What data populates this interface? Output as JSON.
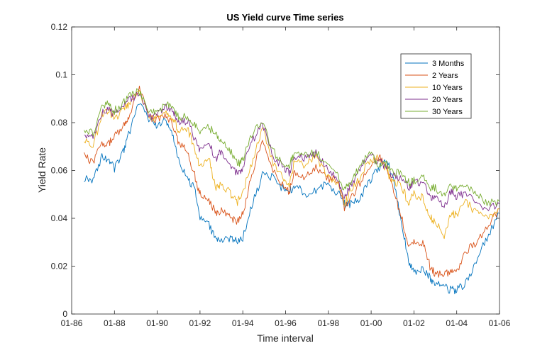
{
  "chart_data": {
    "type": "line",
    "title": "US Yield curve Time series",
    "xlabel": "Time interval",
    "ylabel": "Yield Rate",
    "x_ticks": [
      "01-86",
      "01-88",
      "01-90",
      "01-92",
      "01-94",
      "01-96",
      "01-98",
      "01-00",
      "01-02",
      "01-04",
      "01-06"
    ],
    "x_range": [
      "1986-01",
      "2006-01"
    ],
    "ylim": [
      0,
      0.12
    ],
    "y_ticks": [
      "0",
      "0.02",
      "0.04",
      "0.06",
      "0.08",
      "0.1",
      "0.12"
    ],
    "legend_position": "top-right",
    "grid": false,
    "x": [
      "1986-08",
      "1987-01",
      "1987-06",
      "1987-10",
      "1988-01",
      "1988-06",
      "1988-09",
      "1989-03",
      "1989-09",
      "1990-01",
      "1990-06",
      "1990-10",
      "1991-01",
      "1991-06",
      "1991-10",
      "1992-01",
      "1992-06",
      "1992-10",
      "1993-01",
      "1993-06",
      "1993-10",
      "1994-01",
      "1994-06",
      "1994-12",
      "1995-06",
      "1995-12",
      "1996-03",
      "1996-06",
      "1996-12",
      "1997-06",
      "1997-12",
      "1998-06",
      "1998-10",
      "1999-01",
      "1999-06",
      "1999-12",
      "2000-05",
      "2000-09",
      "2001-01",
      "2001-06",
      "2001-10",
      "2002-01",
      "2002-06",
      "2002-10",
      "2003-01",
      "2003-06",
      "2003-10",
      "2004-01",
      "2004-06",
      "2004-12",
      "2005-06",
      "2006-01"
    ],
    "series": [
      {
        "name": "3 Months",
        "color": "#0072BD",
        "values": [
          0.057,
          0.056,
          0.066,
          0.064,
          0.061,
          0.068,
          0.075,
          0.089,
          0.081,
          0.079,
          0.081,
          0.074,
          0.064,
          0.057,
          0.052,
          0.04,
          0.037,
          0.031,
          0.031,
          0.031,
          0.031,
          0.032,
          0.045,
          0.058,
          0.057,
          0.052,
          0.051,
          0.054,
          0.05,
          0.052,
          0.054,
          0.051,
          0.046,
          0.046,
          0.048,
          0.055,
          0.061,
          0.065,
          0.058,
          0.038,
          0.022,
          0.018,
          0.019,
          0.015,
          0.013,
          0.011,
          0.01,
          0.01,
          0.013,
          0.022,
          0.032,
          0.042
        ]
      },
      {
        "name": "2 Years",
        "color": "#D95319",
        "values": [
          0.066,
          0.063,
          0.072,
          0.071,
          0.075,
          0.078,
          0.082,
          0.094,
          0.082,
          0.081,
          0.083,
          0.079,
          0.071,
          0.068,
          0.058,
          0.05,
          0.047,
          0.042,
          0.043,
          0.04,
          0.039,
          0.042,
          0.058,
          0.074,
          0.06,
          0.053,
          0.051,
          0.059,
          0.057,
          0.061,
          0.057,
          0.056,
          0.044,
          0.048,
          0.054,
          0.062,
          0.066,
          0.063,
          0.053,
          0.041,
          0.028,
          0.03,
          0.03,
          0.02,
          0.017,
          0.016,
          0.019,
          0.017,
          0.026,
          0.03,
          0.037,
          0.044
        ]
      },
      {
        "name": "10 Years",
        "color": "#EDB120",
        "values": [
          0.072,
          0.07,
          0.083,
          0.085,
          0.081,
          0.085,
          0.088,
          0.093,
          0.081,
          0.082,
          0.085,
          0.082,
          0.076,
          0.078,
          0.068,
          0.061,
          0.065,
          0.052,
          0.055,
          0.05,
          0.047,
          0.051,
          0.063,
          0.078,
          0.063,
          0.057,
          0.054,
          0.064,
          0.062,
          0.066,
          0.058,
          0.055,
          0.046,
          0.051,
          0.056,
          0.064,
          0.065,
          0.061,
          0.055,
          0.054,
          0.046,
          0.05,
          0.049,
          0.04,
          0.039,
          0.033,
          0.043,
          0.041,
          0.047,
          0.042,
          0.04,
          0.044
        ]
      },
      {
        "name": "20 Years",
        "color": "#7E2F8E",
        "values": [
          0.075,
          0.074,
          0.084,
          0.086,
          0.083,
          0.087,
          0.089,
          0.092,
          0.082,
          0.083,
          0.087,
          0.085,
          0.08,
          0.081,
          0.073,
          0.069,
          0.071,
          0.065,
          0.068,
          0.063,
          0.058,
          0.061,
          0.072,
          0.08,
          0.066,
          0.061,
          0.059,
          0.066,
          0.065,
          0.067,
          0.061,
          0.057,
          0.049,
          0.053,
          0.06,
          0.066,
          0.064,
          0.062,
          0.058,
          0.057,
          0.053,
          0.055,
          0.055,
          0.049,
          0.049,
          0.044,
          0.052,
          0.049,
          0.051,
          0.047,
          0.044,
          0.046
        ]
      },
      {
        "name": "30 Years",
        "color": "#77AC30",
        "values": [
          0.077,
          0.076,
          0.086,
          0.088,
          0.085,
          0.088,
          0.091,
          0.093,
          0.084,
          0.084,
          0.088,
          0.087,
          0.082,
          0.083,
          0.079,
          0.077,
          0.078,
          0.075,
          0.072,
          0.068,
          0.063,
          0.064,
          0.075,
          0.081,
          0.068,
          0.063,
          0.062,
          0.068,
          0.066,
          0.068,
          0.063,
          0.058,
          0.052,
          0.055,
          0.061,
          0.067,
          0.063,
          0.063,
          0.059,
          0.059,
          0.055,
          0.056,
          0.057,
          0.053,
          0.053,
          0.049,
          0.054,
          0.052,
          0.053,
          0.05,
          0.046,
          0.047
        ]
      }
    ]
  }
}
